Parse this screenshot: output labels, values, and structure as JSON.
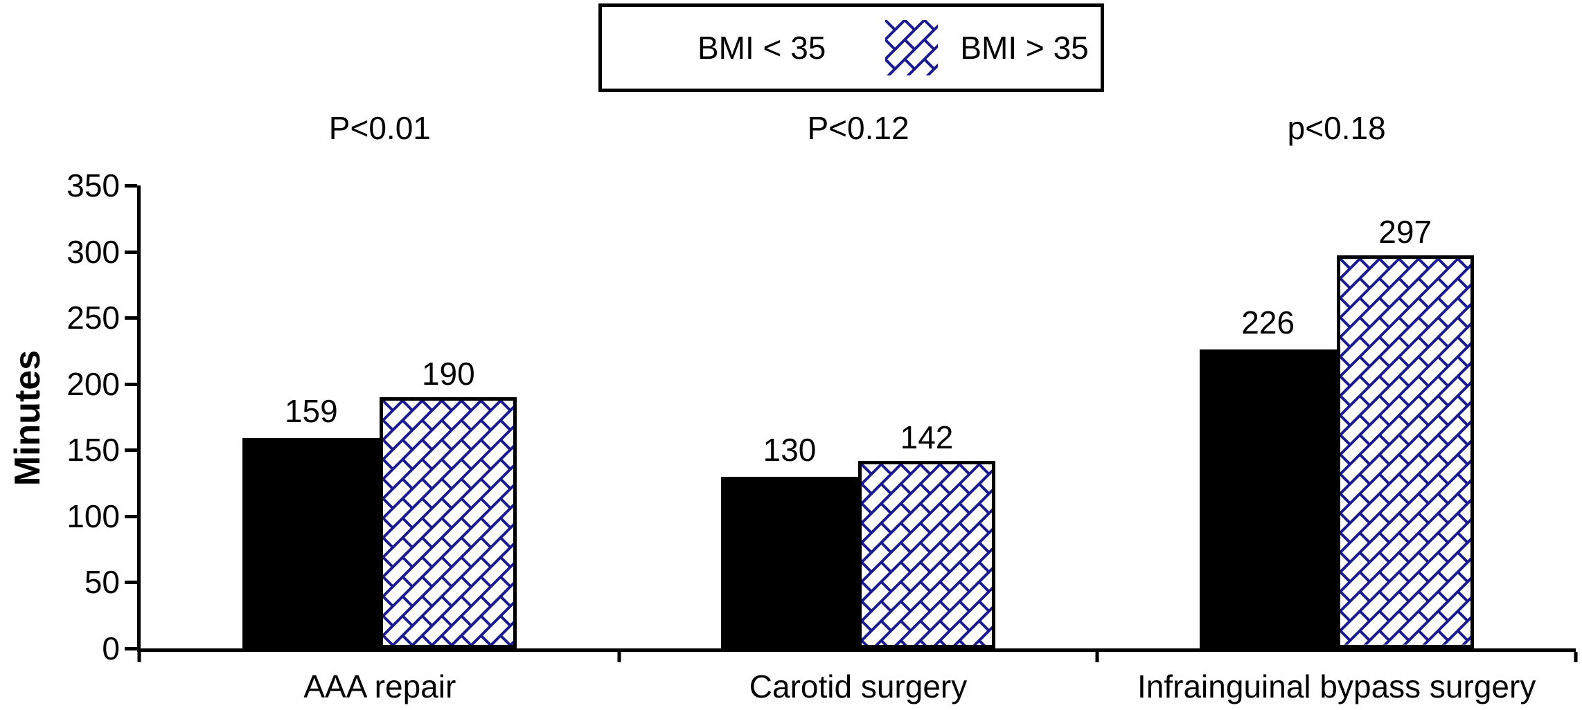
{
  "y_axis": {
    "title": "Minutes",
    "ticks": [
      350,
      300,
      250,
      200,
      150,
      100,
      50,
      0
    ],
    "max": 350,
    "min": 0
  },
  "legend": {
    "items": [
      {
        "label": "BMI < 35",
        "swatch": "solid-black-square"
      },
      {
        "label": "BMI > 35",
        "swatch": "blue-diagonal-brick-hatch"
      }
    ]
  },
  "groups": [
    {
      "category": "AAA repair",
      "p_label": "P<0.01",
      "values": [
        159,
        190
      ]
    },
    {
      "category": "Carotid surgery",
      "p_label": "P<0.12",
      "values": [
        130,
        142
      ]
    },
    {
      "category": "Infrainguinal bypass surgery",
      "p_label": "p<0.18",
      "values": [
        226,
        297
      ]
    }
  ],
  "colors": {
    "bar_solid": "#000000",
    "hatch": "#1a1a8f",
    "axis": "#000000",
    "background": "#ffffff",
    "text": "#000000"
  },
  "chart_data": {
    "type": "bar",
    "title": "",
    "categories": [
      "AAA repair",
      "Carotid surgery",
      "Infrainguinal bypass surgery"
    ],
    "series": [
      {
        "name": "BMI < 35",
        "values": [
          159,
          130,
          226
        ]
      },
      {
        "name": "BMI > 35",
        "values": [
          190,
          142,
          297
        ]
      }
    ],
    "annotations": [
      "P<0.01",
      "P<0.12",
      "p<0.18"
    ],
    "data_labels_shown": true,
    "xlabel": "",
    "ylabel": "Minutes",
    "ylim": [
      0,
      350
    ],
    "yticks": [
      0,
      50,
      100,
      150,
      200,
      250,
      300,
      350
    ],
    "legend_position": "top-center",
    "grid": false
  }
}
